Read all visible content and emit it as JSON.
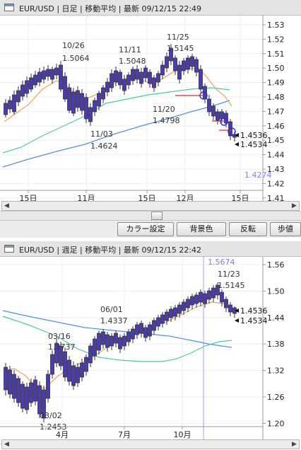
{
  "top_panel": {
    "title": "EUR/USD | 日足 | 移動平均 | 最新 09/12/15 22:49",
    "y_ticks": [
      "1.53",
      "1.52",
      "1.51",
      "1.50",
      "1.49",
      "1.48",
      "1.47",
      "1.46",
      "1.45",
      "1.44",
      "1.43",
      "1.42",
      "1.41"
    ],
    "x_ticks": [
      "15日",
      "11月",
      "15日",
      "12月",
      "15日"
    ],
    "annotations": {
      "d1026": "10/26",
      "v1026": "1.5064",
      "d1111": "11/11",
      "v1111": "1.5048",
      "d1125": "11/25",
      "v1125": "1.5145",
      "d1120": "11/20",
      "v1120": "1.4798",
      "d1103": "11/03",
      "v1103": "1.4624",
      "last_a": "1.4536",
      "last_b": "1.4534",
      "low_mark": "1.4274"
    }
  },
  "buttons": {
    "color": "カラー設定",
    "background": "背景色",
    "invert": "反転",
    "step": "歩値"
  },
  "bottom_panel": {
    "title": "EUR/USD | 週足 | 移動平均 | 最新 09/12/15 22:42",
    "y_ticks": [
      "1.56",
      "1.50",
      "1.44",
      "1.38",
      "1.32",
      "1.26",
      "1.20"
    ],
    "x_ticks": [
      "4月",
      "7月",
      "10月"
    ],
    "annotations": {
      "d1123": "11/23",
      "v1123": "1.5145",
      "d0601": "06/01",
      "v0601": "1.4337",
      "d0316": "03/16",
      "v0316": "1.3737",
      "d0302": "03/02",
      "v0302": "1.2453",
      "last_a": "1.4536",
      "last_b": "1.4534",
      "high_mark": "1.5674"
    }
  },
  "colors": {
    "candle": "#4a3bb0",
    "ma_short": "#f0a060",
    "ma_mid": "#50c8a0",
    "ma_long": "#5090e0",
    "marker": "#d03060"
  },
  "chart_data": [
    {
      "type": "line",
      "title": "EUR/USD 日足",
      "ylim": [
        1.41,
        1.53
      ],
      "x": [
        "15日",
        "11月",
        "15日",
        "12月",
        "15日"
      ],
      "series": [],
      "points": [
        {
          "label": "10/26",
          "value": 1.5064
        },
        {
          "label": "11/03",
          "value": 1.4624
        },
        {
          "label": "11/11",
          "value": 1.5048
        },
        {
          "label": "11/20",
          "value": 1.4798
        },
        {
          "label": "11/25",
          "value": 1.5145
        },
        {
          "label": "last",
          "value": 1.4536
        },
        {
          "label": "last",
          "value": 1.4534
        }
      ]
    },
    {
      "type": "line",
      "title": "EUR/USD 週足",
      "ylim": [
        1.2,
        1.56
      ],
      "x": [
        "4月",
        "7月",
        "10月"
      ],
      "series": [],
      "points": [
        {
          "label": "03/02",
          "value": 1.2453
        },
        {
          "label": "03/16",
          "value": 1.3737
        },
        {
          "label": "06/01",
          "value": 1.4337
        },
        {
          "label": "11/23",
          "value": 1.5145
        },
        {
          "label": "last",
          "value": 1.4536
        },
        {
          "label": "last",
          "value": 1.4534
        }
      ]
    }
  ]
}
